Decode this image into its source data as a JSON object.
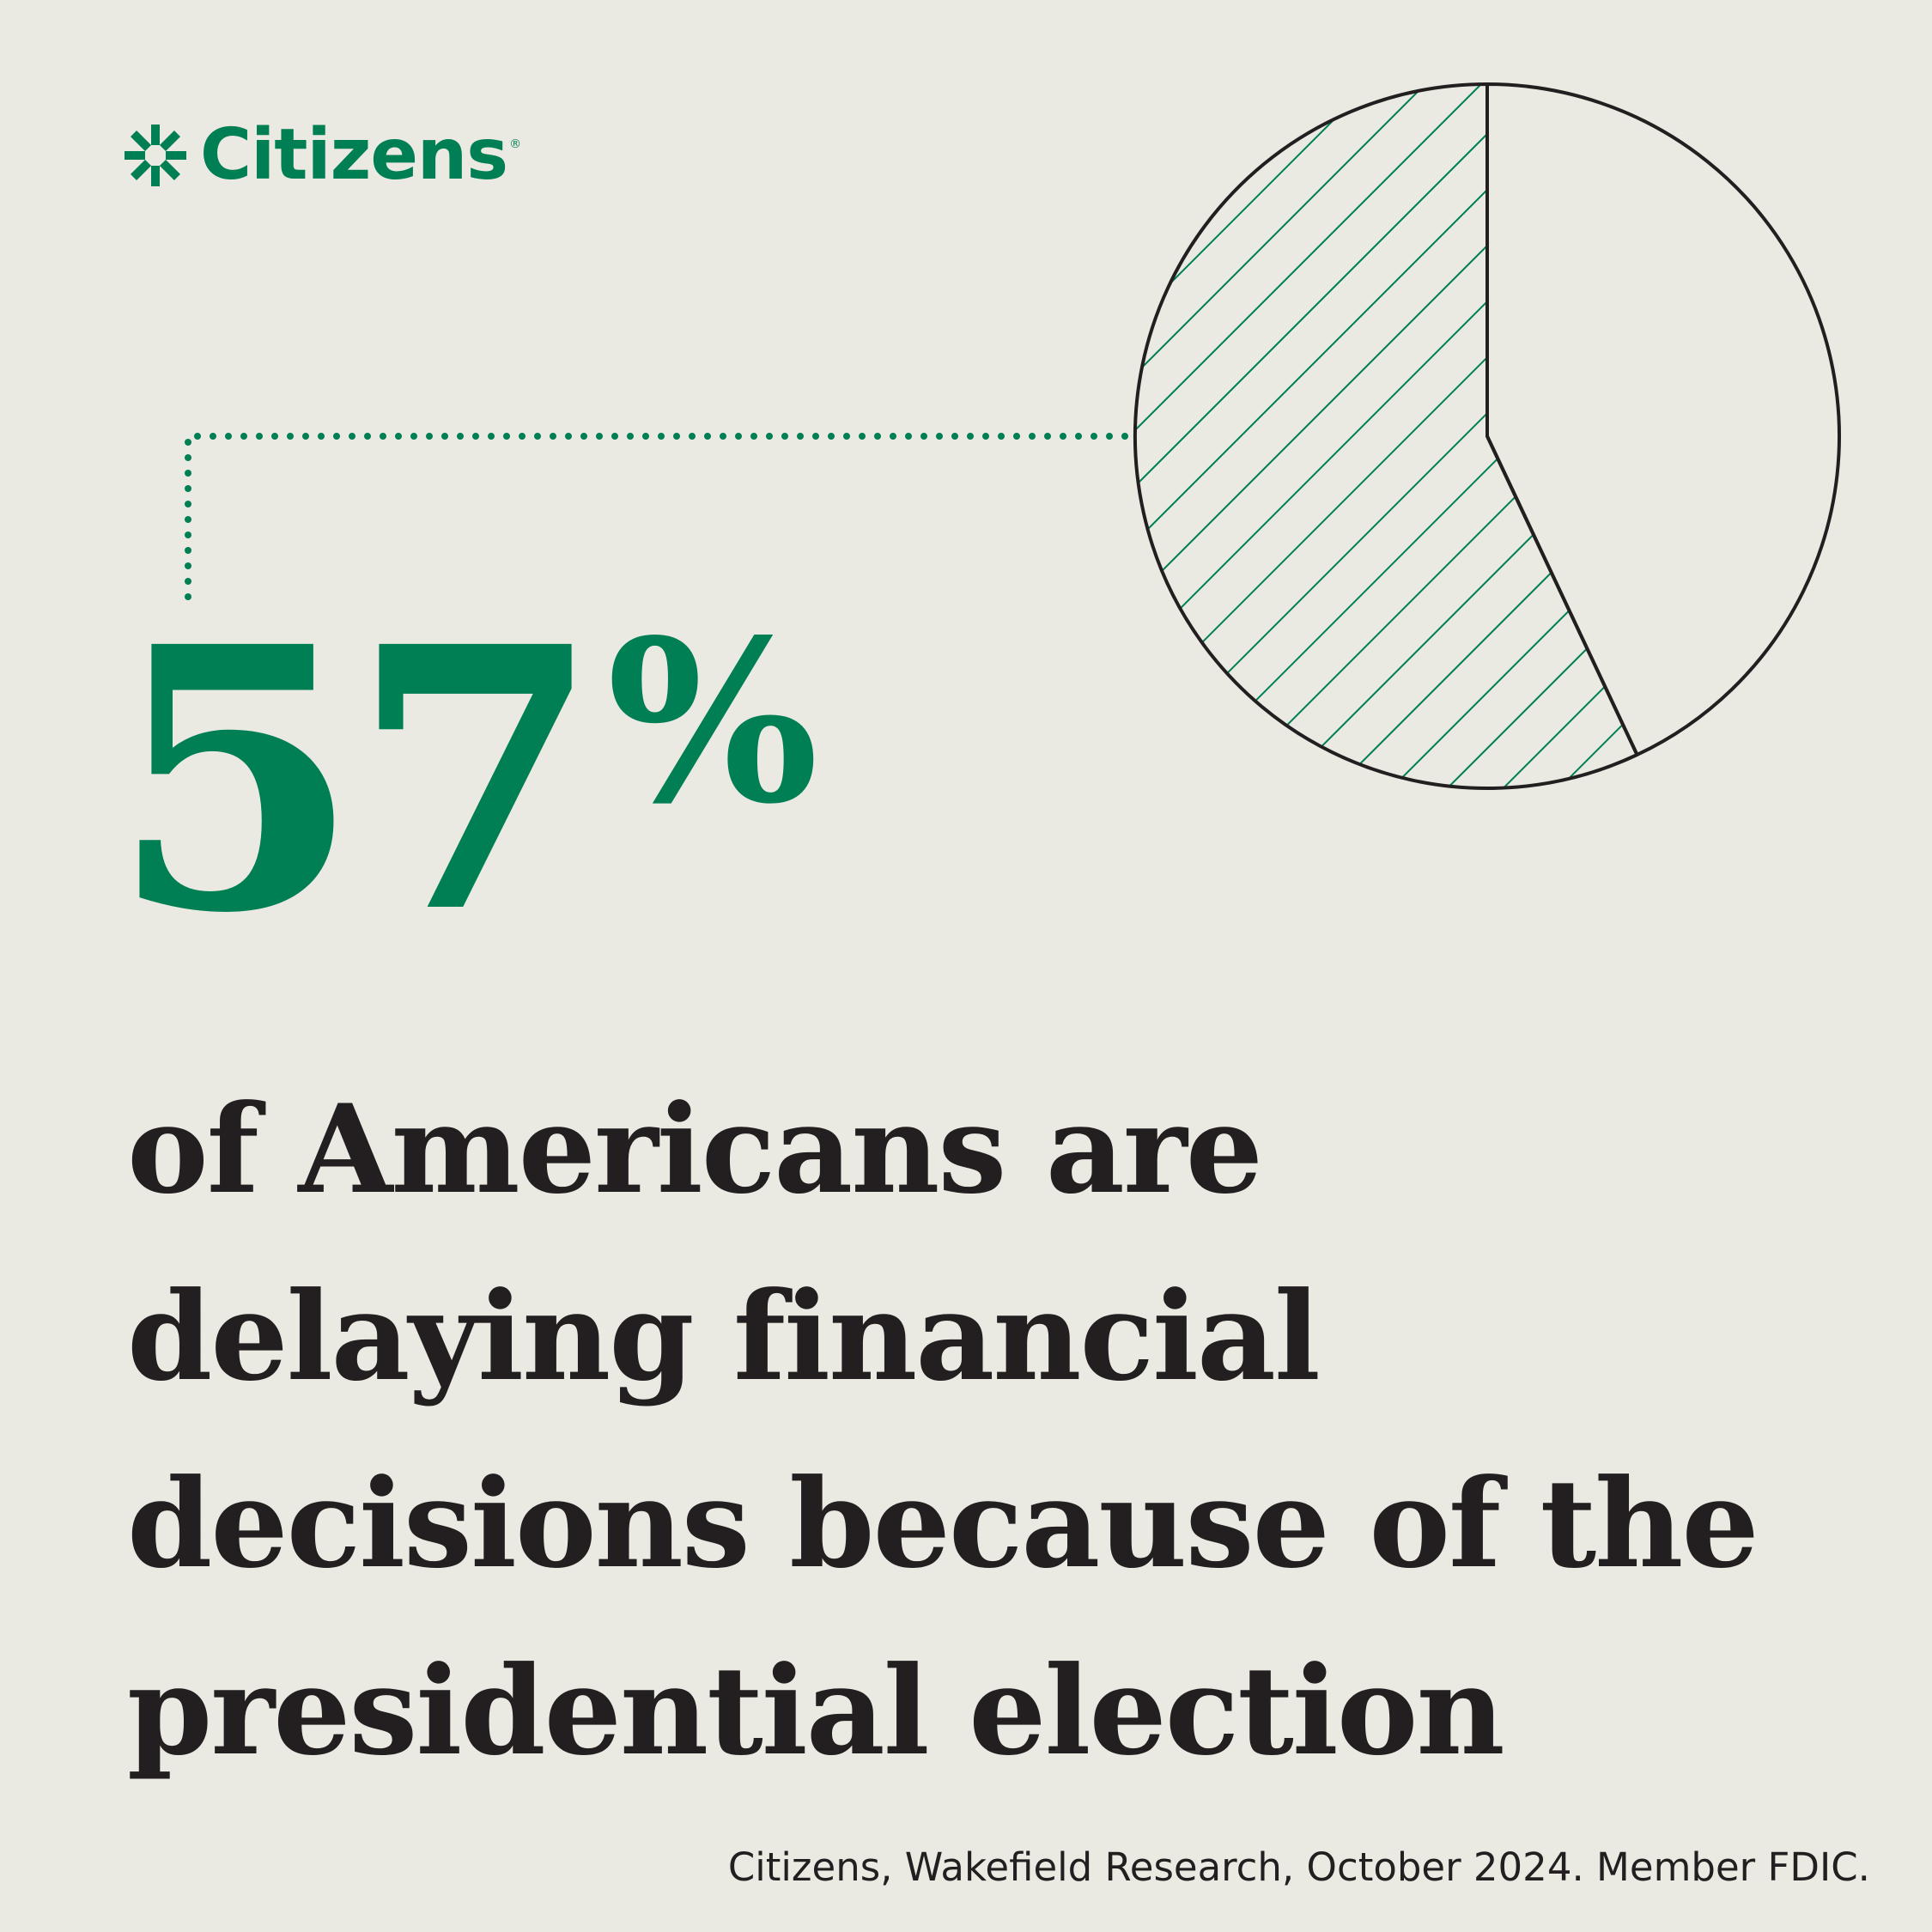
{
  "colors": {
    "background": "#eaeae2",
    "brand_green": "#007e54",
    "text_dark": "#231f20",
    "outline": "#231f20"
  },
  "brand": {
    "name": "Citizens",
    "registered": "®",
    "icon": "citizens-logo-icon"
  },
  "stat": {
    "value": "57",
    "percent_sign": "%"
  },
  "headline": {
    "lines": [
      "of Americans are",
      "delaying financial",
      "decisions because of the",
      "presidential election"
    ]
  },
  "source": "Citizens, Wakefield Research, October 2024. Member FDIC.",
  "chart_data": {
    "type": "pie",
    "values": [
      57,
      43
    ],
    "highlighted_index": 0,
    "highlight_style": "green diagonal hatch",
    "remainder_style": "unfilled",
    "title": "",
    "legend": "none"
  }
}
